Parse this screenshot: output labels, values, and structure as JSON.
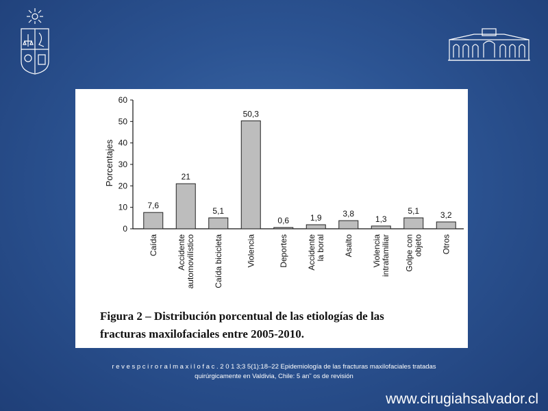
{
  "chart_data": {
    "type": "bar",
    "ylabel": "Porcentajes",
    "ylim": [
      0,
      60
    ],
    "yticks": [
      0,
      10,
      20,
      30,
      40,
      50,
      60
    ],
    "categories": [
      [
        "Caída"
      ],
      [
        "Accidente",
        "automovilístico"
      ],
      [
        "Caída bicicleta"
      ],
      [
        "Violencia"
      ],
      [
        "Deportes"
      ],
      [
        "Accidente",
        "la boral"
      ],
      [
        "Asalto"
      ],
      [
        "Violencia",
        "intrafamiliar"
      ],
      [
        "Golpe con",
        "objeto"
      ],
      [
        "Otros"
      ]
    ],
    "values": [
      7.6,
      21,
      5.1,
      50.3,
      0.6,
      1.9,
      3.8,
      1.3,
      5.1,
      3.2
    ],
    "value_labels": [
      "7,6",
      "21",
      "5,1",
      "50,3",
      "0,6",
      "1,9",
      "3,8",
      "1,3",
      "5,1",
      "3,2"
    ],
    "bar_color": "#bdbdbd",
    "grid": false
  },
  "caption": {
    "line1": "Figura 2 – Distribución porcentual de las etiologías de las",
    "line2": "fracturas maxilofaciales entre 2005-2010."
  },
  "citation": {
    "line1": "r e v e s p c i r o r a l m a x i l o f a c . 2 0 1 3;3 5(1):18–22   Epidemiología de las fracturas maxilofaciales tratadas",
    "line2": "quirúrgicamente en Valdivia, Chile: 5 an˜ os de revisión"
  },
  "website": "www.cirugiahsalvador.cl",
  "icons": {
    "left_logo": "university-crest-icon",
    "right_logo": "building-facade-icon"
  },
  "colors": {
    "background": "#2c5493",
    "panel": "#ffffff",
    "bar": "#bdbdbd"
  }
}
